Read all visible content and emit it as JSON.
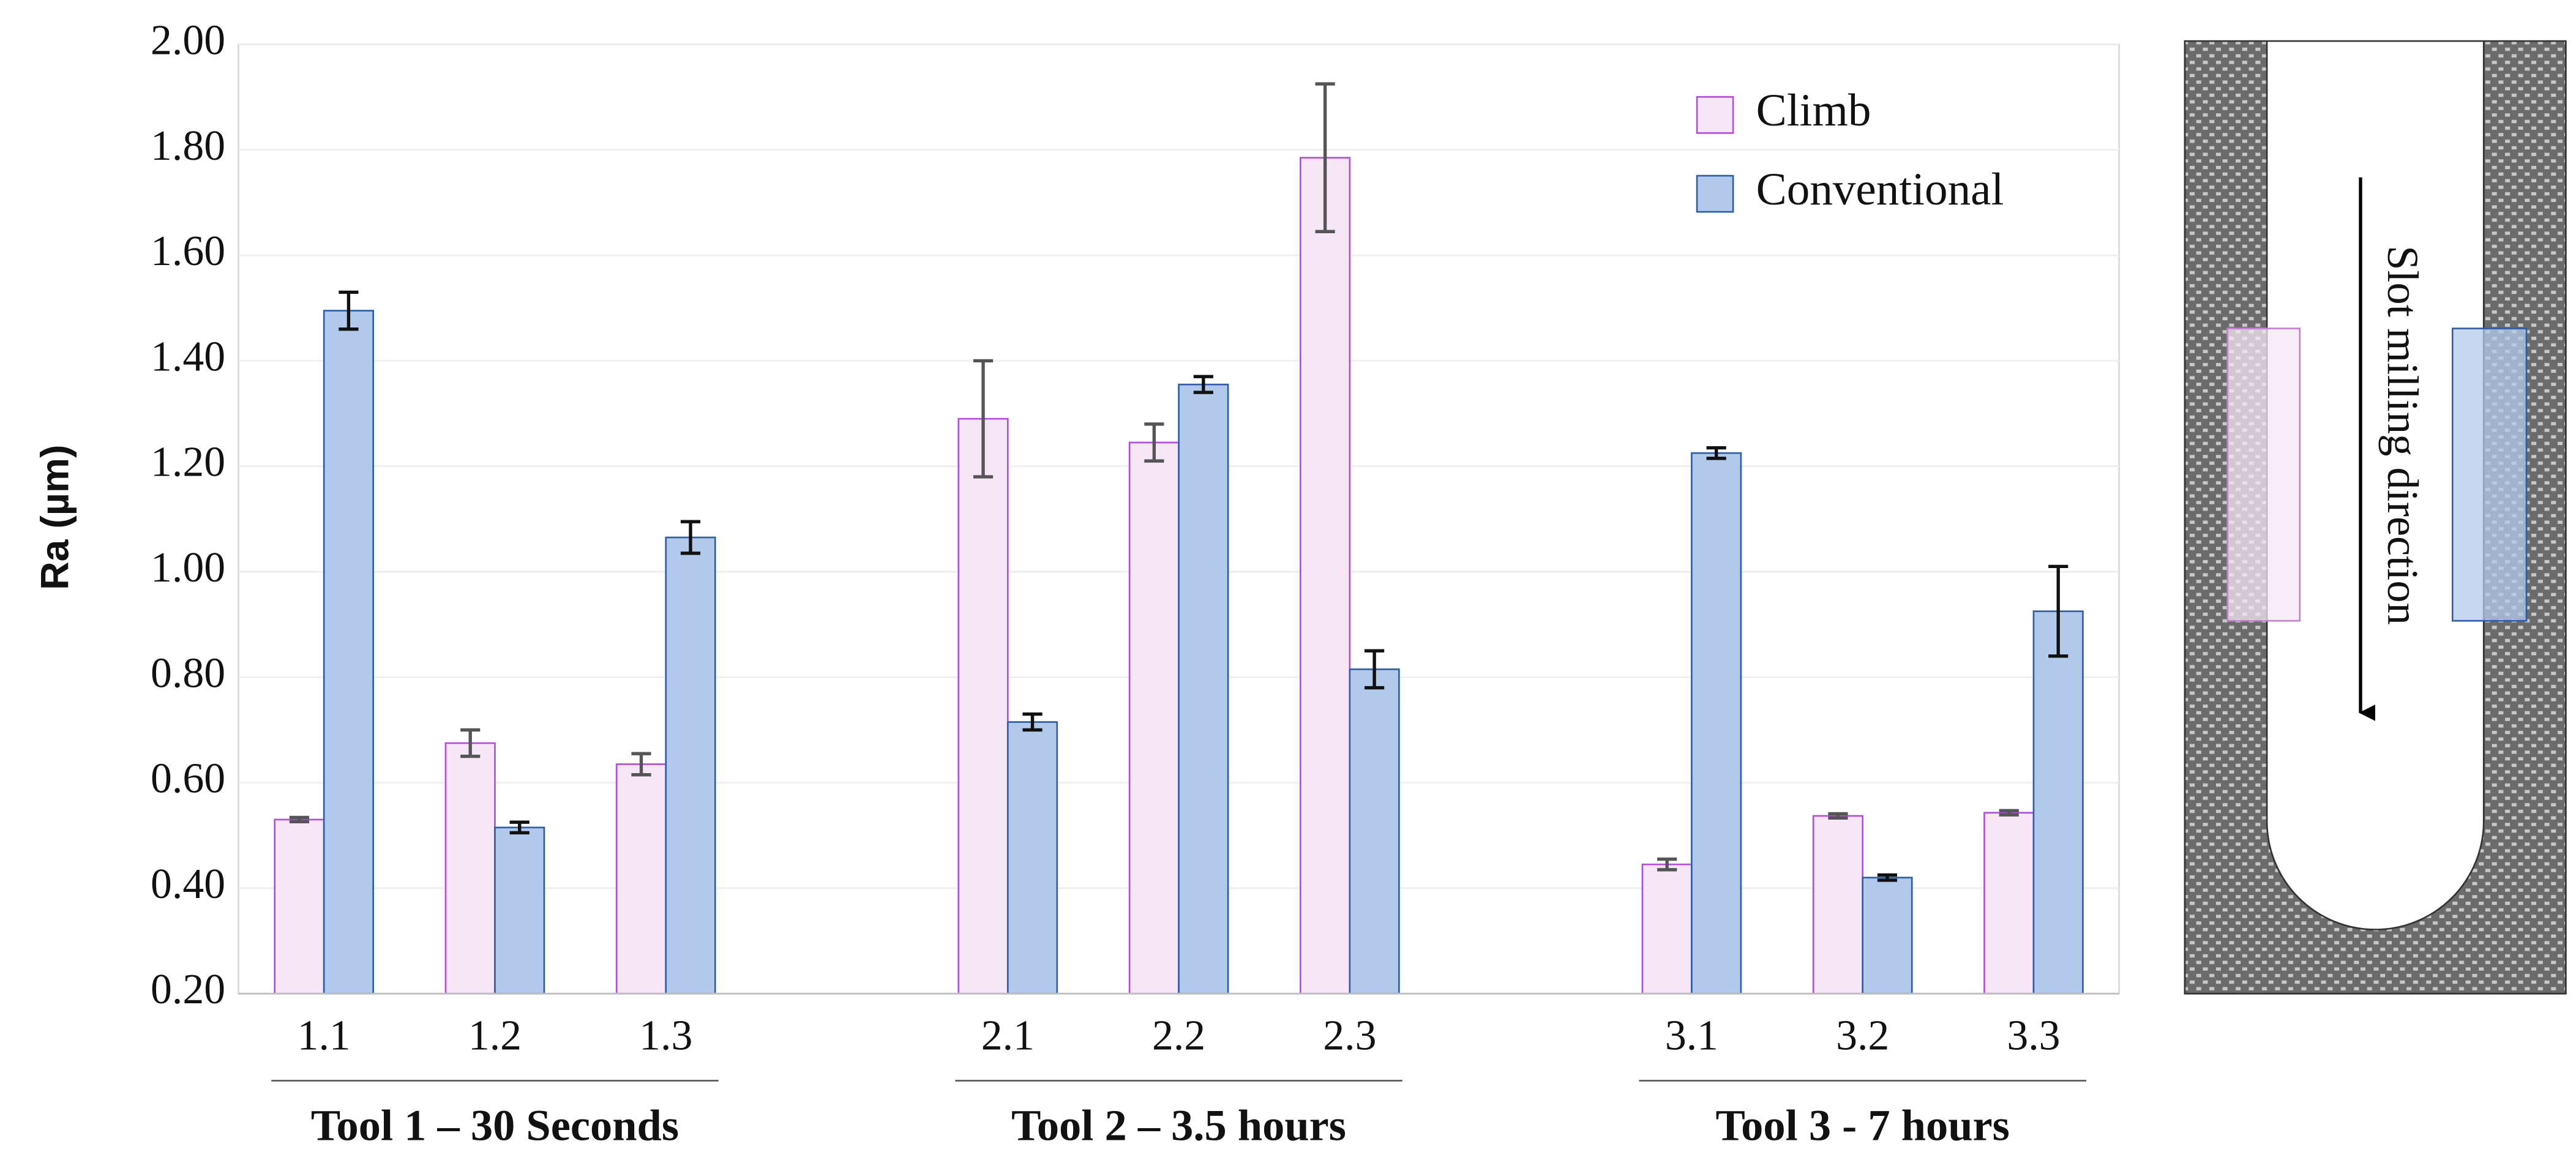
{
  "chart_data": {
    "type": "bar",
    "y_label": "Ra (µm)",
    "categories": [
      "1.1",
      "1.2",
      "1.3",
      null,
      "2.1",
      "2.2",
      "2.3",
      null,
      "3.1",
      "3.2",
      "3.3"
    ],
    "group_labels": [
      "Tool 1 – 30 Seconds",
      "Tool 2 – 3.5 hours",
      "Tool 3 - 7 hours"
    ],
    "series": [
      {
        "name": "Climb",
        "color": "#f7e6f7",
        "edge": "#b14fd6",
        "error_color": "#555555",
        "values": [
          0.53,
          0.675,
          0.635,
          null,
          1.29,
          1.245,
          1.785,
          null,
          0.445,
          0.537,
          0.543
        ],
        "errors": [
          0.004,
          0.025,
          0.02,
          null,
          0.11,
          0.035,
          0.14,
          null,
          0.01,
          0.004,
          0.004
        ]
      },
      {
        "name": "Conventional",
        "color": "#b3c9ec",
        "edge": "#2f5fa8",
        "error_color": "#111111",
        "values": [
          1.495,
          0.515,
          1.065,
          null,
          0.715,
          1.355,
          0.815,
          null,
          1.225,
          0.42,
          0.925
        ],
        "errors": [
          0.035,
          0.01,
          0.03,
          null,
          0.015,
          0.015,
          0.035,
          null,
          0.01,
          0.005,
          0.085
        ]
      }
    ],
    "ylim": [
      0.2,
      2.0
    ],
    "yticks": [
      {
        "value": 0.2,
        "label": "0.20"
      },
      {
        "value": 0.4,
        "label": "0.40"
      },
      {
        "value": 0.6,
        "label": "0.60"
      },
      {
        "value": 0.8,
        "label": "0.80"
      },
      {
        "value": 1.0,
        "label": "1.00"
      },
      {
        "value": 1.2,
        "label": "1.20"
      },
      {
        "value": 1.4,
        "label": "1.40"
      },
      {
        "value": 1.6,
        "label": "1.60"
      },
      {
        "value": 1.8,
        "label": "1.80"
      },
      {
        "value": 2.0,
        "label": "2.00"
      }
    ],
    "grid": true,
    "legend": "upper right"
  },
  "diagram_label": "Slot milling direction"
}
